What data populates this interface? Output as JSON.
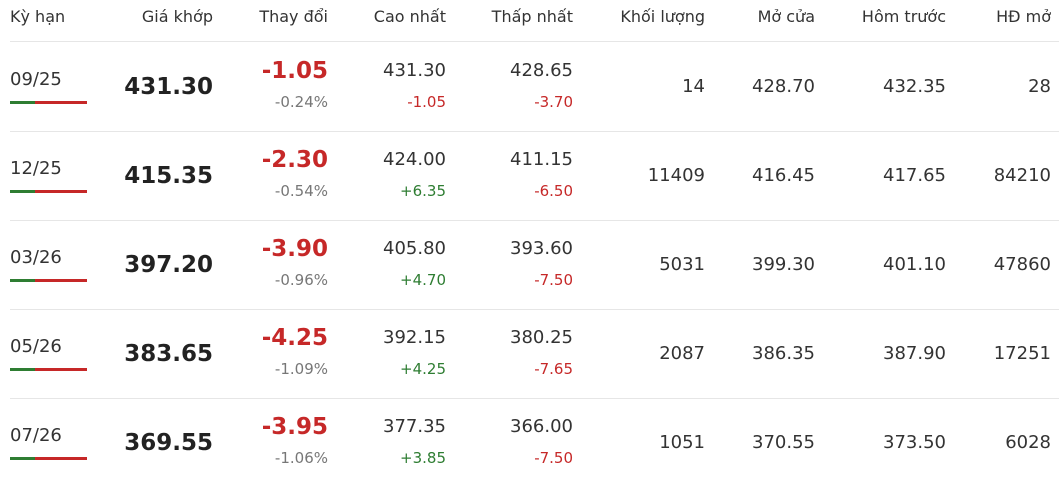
{
  "table": {
    "headers": [
      "Kỳ hạn",
      "Giá khớp",
      "Thay đổi",
      "Cao nhất",
      "Thấp nhất",
      "Khối lượng",
      "Mở cửa",
      "Hôm trước",
      "HĐ mở"
    ],
    "rows": [
      {
        "term": "09/25",
        "price": "431.30",
        "change": "-1.05",
        "change_pct": "-0.24%",
        "high": "431.30",
        "high_diff": "-1.05",
        "low": "428.65",
        "low_diff": "-3.70",
        "volume": "14",
        "open": "428.70",
        "prev": "432.35",
        "oi": "28"
      },
      {
        "term": "12/25",
        "price": "415.35",
        "change": "-2.30",
        "change_pct": "-0.54%",
        "high": "424.00",
        "high_diff": "+6.35",
        "low": "411.15",
        "low_diff": "-6.50",
        "volume": "11409",
        "open": "416.45",
        "prev": "417.65",
        "oi": "84210"
      },
      {
        "term": "03/26",
        "price": "397.20",
        "change": "-3.90",
        "change_pct": "-0.96%",
        "high": "405.80",
        "high_diff": "+4.70",
        "low": "393.60",
        "low_diff": "-7.50",
        "volume": "5031",
        "open": "399.30",
        "prev": "401.10",
        "oi": "47860"
      },
      {
        "term": "05/26",
        "price": "383.65",
        "change": "-4.25",
        "change_pct": "-1.09%",
        "high": "392.15",
        "high_diff": "+4.25",
        "low": "380.25",
        "low_diff": "-7.65",
        "volume": "2087",
        "open": "386.35",
        "prev": "387.90",
        "oi": "17251"
      },
      {
        "term": "07/26",
        "price": "369.55",
        "change": "-3.95",
        "change_pct": "-1.06%",
        "high": "377.35",
        "high_diff": "+3.85",
        "low": "366.00",
        "low_diff": "-7.50",
        "volume": "1051",
        "open": "370.55",
        "prev": "373.50",
        "oi": "6028"
      }
    ]
  }
}
